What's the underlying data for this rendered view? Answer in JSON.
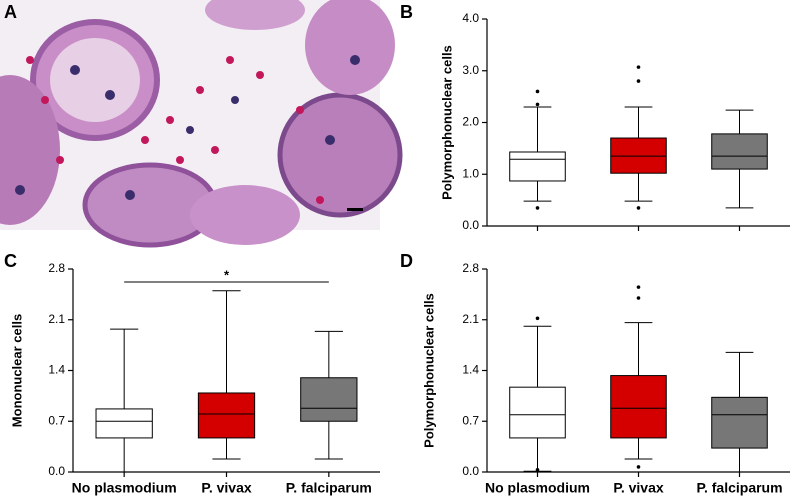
{
  "image_panel": {
    "panel_label": "A"
  },
  "chart_data": [
    {
      "type": "box",
      "panel_label": "B",
      "y_label": "Polymorphonuclear cells",
      "categories": [
        null,
        null,
        null
      ],
      "colors": [
        "#ffffff",
        "#d40000",
        "#777777"
      ],
      "ylim": [
        0,
        4
      ],
      "yticks": [
        {
          "value": 0,
          "label": "0.0"
        },
        {
          "value": 1,
          "label": "1.0"
        },
        {
          "value": 2,
          "label": "2.0"
        },
        {
          "value": 3,
          "label": "3.0"
        },
        {
          "value": 4,
          "label": "4.0"
        }
      ],
      "boxes": [
        {
          "min": 0.48,
          "q1": 0.87,
          "median": 1.29,
          "q3": 1.43,
          "max": 2.3,
          "outliers": [
            2.6,
            2.35,
            0.35
          ]
        },
        {
          "min": 0.48,
          "q1": 1.02,
          "median": 1.35,
          "q3": 1.7,
          "max": 2.3,
          "outliers": [
            3.07,
            2.8,
            0.35
          ]
        },
        {
          "min": 0.35,
          "q1": 1.1,
          "median": 1.35,
          "q3": 1.78,
          "max": 2.24,
          "outliers": []
        }
      ]
    },
    {
      "type": "box",
      "panel_label": "C",
      "y_label": "Mononuclear cells",
      "categories": [
        "No plasmodium",
        "P. vivax",
        "P. falciparum"
      ],
      "colors": [
        "#ffffff",
        "#d40000",
        "#777777"
      ],
      "ylim": [
        0,
        2.8
      ],
      "yticks": [
        {
          "value": 0,
          "label": "0.0"
        },
        0.7,
        1.4,
        2.1,
        2.8
      ],
      "annotation": "*",
      "boxes": [
        {
          "min": 0,
          "q1": 0.47,
          "median": 0.7,
          "q3": 0.87,
          "max": 1.97,
          "outliers": []
        },
        {
          "min": 0.18,
          "q1": 0.47,
          "median": 0.8,
          "q3": 1.09,
          "max": 2.5,
          "outliers": []
        },
        {
          "min": 0.18,
          "q1": 0.7,
          "median": 0.88,
          "q3": 1.3,
          "max": 1.94,
          "outliers": []
        }
      ]
    },
    {
      "type": "box",
      "panel_label": "D",
      "y_label": "Polymorphonuclear cells",
      "categories": [
        "No plasmodium",
        "P. vivax",
        "P. falciparum"
      ],
      "colors": [
        "#ffffff",
        "#d40000",
        "#777777"
      ],
      "ylim": [
        0,
        2.8
      ],
      "yticks": [
        {
          "value": 0,
          "label": "0.0"
        },
        0.7,
        1.4,
        2.1,
        2.8
      ],
      "boxes": [
        {
          "min": 0.01,
          "q1": 0.47,
          "median": 0.79,
          "q3": 1.17,
          "max": 2.01,
          "outliers": [
            2.12,
            0.03
          ]
        },
        {
          "min": 0.18,
          "q1": 0.47,
          "median": 0.88,
          "q3": 1.33,
          "max": 2.06,
          "outliers": [
            2.55,
            2.4,
            0.07
          ]
        },
        {
          "min": 0,
          "q1": 0.33,
          "median": 0.79,
          "q3": 1.03,
          "max": 1.65,
          "outliers": []
        }
      ]
    }
  ]
}
